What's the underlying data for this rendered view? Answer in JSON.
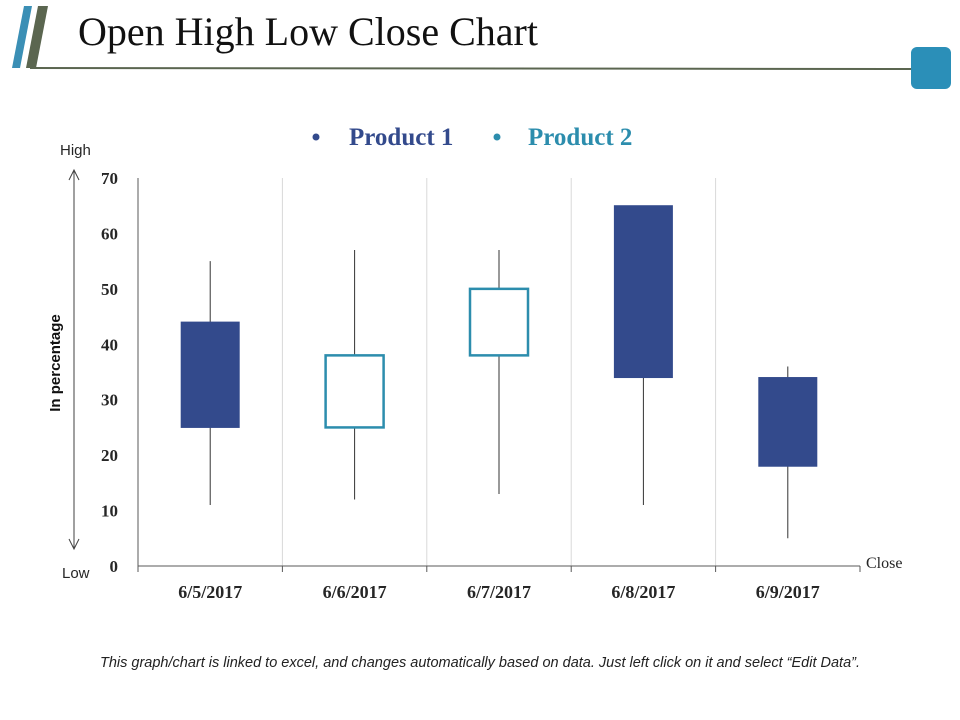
{
  "page": {
    "title": "Open High Low Close Chart",
    "footnote": "This graph/chart is linked to excel, and changes automatically based on data. Just left click on it and select “Edit Data”.",
    "colors": {
      "accent_stripe_dark": "#5b6650",
      "accent_stripe_light": "#3b8fb5",
      "rule": "#5b6650",
      "corner_square": "#2b8fb8"
    }
  },
  "chart_data": {
    "type": "ohlc-candlestick",
    "categories": [
      "6/5/2017",
      "6/6/2017",
      "6/7/2017",
      "6/8/2017",
      "6/9/2017"
    ],
    "series": [
      {
        "name": "Product 1",
        "color": "#334a8c"
      },
      {
        "name": "Product 2",
        "color": "#2c8dad"
      }
    ],
    "candles": [
      {
        "open": 44,
        "high": 55,
        "low": 11,
        "close": 25
      },
      {
        "open": 25,
        "high": 57,
        "low": 12,
        "close": 38
      },
      {
        "open": 38,
        "high": 57,
        "low": 13,
        "close": 50
      },
      {
        "open": 65,
        "high": 65,
        "low": 11,
        "close": 34
      },
      {
        "open": 34,
        "high": 36,
        "low": 5,
        "close": 18
      }
    ],
    "yticks": [
      0,
      10,
      20,
      30,
      40,
      50,
      60,
      70
    ],
    "ylim": [
      0,
      70
    ],
    "ylabel": "In percentage",
    "y_high_label": "High",
    "y_low_label": "Low",
    "x_end_label": "Close",
    "legend_position": "top-center",
    "grid": "vertical"
  }
}
